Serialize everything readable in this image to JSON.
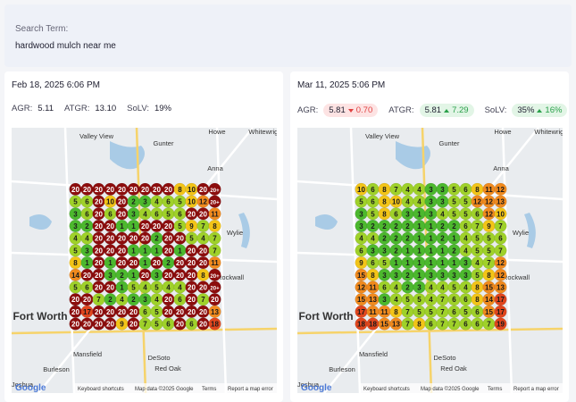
{
  "search": {
    "label": "Search Term:",
    "term": "hardwood mulch near me"
  },
  "panels": [
    {
      "date": "Feb 18, 2025 6:06 PM",
      "metrics": [
        {
          "name": "AGR:",
          "value": "5.11"
        },
        {
          "name": "ATGR:",
          "value": "13.10"
        },
        {
          "name": "SoLV:",
          "value": "19%"
        }
      ],
      "grid": [
        [
          "20",
          "20",
          "20",
          "20",
          "20",
          "20",
          "20",
          "20",
          "20",
          "8",
          "10",
          "20",
          "20+"
        ],
        [
          "5",
          "6",
          "20",
          "10",
          "20",
          "2",
          "3",
          "4",
          "6",
          "5",
          "10",
          "12",
          "20+"
        ],
        [
          "3",
          "6",
          "20",
          "6",
          "20",
          "3",
          "4",
          "6",
          "5",
          "6",
          "20",
          "20",
          "11"
        ],
        [
          "3",
          "2",
          "20",
          "20",
          "1",
          "1",
          "20",
          "20",
          "20",
          "5",
          "9",
          "7",
          "8"
        ],
        [
          "4",
          "4",
          "20",
          "20",
          "20",
          "20",
          "20",
          "2",
          "20",
          "20",
          "5",
          "4",
          "7"
        ],
        [
          "5",
          "3",
          "20",
          "20",
          "20",
          "1",
          "1",
          "1",
          "20",
          "1",
          "20",
          "20",
          "7"
        ],
        [
          "8",
          "1",
          "20",
          "1",
          "20",
          "20",
          "1",
          "20",
          "2",
          "20",
          "20",
          "20",
          "11"
        ],
        [
          "14",
          "20",
          "20",
          "3",
          "2",
          "1",
          "20",
          "3",
          "20",
          "20",
          "20",
          "8",
          "20+"
        ],
        [
          "5",
          "6",
          "20",
          "20",
          "1",
          "5",
          "4",
          "5",
          "4",
          "4",
          "20",
          "20",
          "20+"
        ],
        [
          "20",
          "20",
          "7",
          "2",
          "4",
          "2",
          "3",
          "4",
          "20",
          "6",
          "20",
          "7",
          "20"
        ],
        [
          "20",
          "17",
          "20",
          "20",
          "20",
          "20",
          "6",
          "5",
          "20",
          "20",
          "20",
          "20",
          "13"
        ],
        [
          "20",
          "20",
          "20",
          "20",
          "9",
          "20",
          "7",
          "5",
          "6",
          "20",
          "6",
          "20",
          "18"
        ]
      ]
    },
    {
      "date": "Mar 11, 2025 5:06 PM",
      "metrics": [
        {
          "name": "AGR:",
          "value": "5.81",
          "change": "0.70",
          "trend": "down"
        },
        {
          "name": "ATGR:",
          "value": "5.81",
          "change": "7.29",
          "trend": "up"
        },
        {
          "name": "SoLV:",
          "value": "35%",
          "change": "16%",
          "trend": "up"
        }
      ],
      "grid": [
        [
          "10",
          "6",
          "8",
          "7",
          "4",
          "4",
          "3",
          "3",
          "5",
          "6",
          "8",
          "11",
          "12"
        ],
        [
          "5",
          "6",
          "8",
          "10",
          "4",
          "4",
          "3",
          "3",
          "5",
          "5",
          "12",
          "12",
          "13"
        ],
        [
          "3",
          "5",
          "8",
          "6",
          "3",
          "1",
          "3",
          "4",
          "5",
          "5",
          "6",
          "12",
          "10"
        ],
        [
          "3",
          "2",
          "2",
          "2",
          "2",
          "1",
          "1",
          "2",
          "2",
          "6",
          "7",
          "9",
          "7"
        ],
        [
          "4",
          "4",
          "2",
          "2",
          "2",
          "1",
          "1",
          "2",
          "1",
          "4",
          "5",
          "5",
          "6"
        ],
        [
          "6",
          "3",
          "3",
          "2",
          "1",
          "1",
          "1",
          "1",
          "2",
          "4",
          "5",
          "5",
          "7"
        ],
        [
          "9",
          "6",
          "5",
          "1",
          "1",
          "1",
          "1",
          "1",
          "1",
          "3",
          "4",
          "7",
          "12"
        ],
        [
          "15",
          "8",
          "3",
          "3",
          "2",
          "1",
          "3",
          "3",
          "3",
          "3",
          "5",
          "8",
          "12"
        ],
        [
          "12",
          "11",
          "6",
          "4",
          "2",
          "3",
          "4",
          "4",
          "5",
          "4",
          "8",
          "15",
          "13"
        ],
        [
          "15",
          "13",
          "3",
          "4",
          "5",
          "5",
          "4",
          "7",
          "6",
          "6",
          "8",
          "14",
          "17"
        ],
        [
          "17",
          "11",
          "11",
          "8",
          "7",
          "5",
          "5",
          "7",
          "6",
          "5",
          "6",
          "15",
          "17"
        ],
        [
          "18",
          "18",
          "15",
          "13",
          "7",
          "8",
          "6",
          "7",
          "7",
          "6",
          "6",
          "7",
          "19"
        ]
      ]
    }
  ],
  "map": {
    "places": [
      "Valley View",
      "Gunter",
      "Howe",
      "Whitewright",
      "Anna",
      "Wylie",
      "Rockwall",
      "Fort Worth",
      "Burleson",
      "Mansfield",
      "DeSoto",
      "Red Oak",
      "Joshua"
    ],
    "logo": "Google",
    "footer": [
      "Keyboard shortcuts",
      "Map data ©2025 Google",
      "Terms",
      "Report a map error"
    ]
  }
}
